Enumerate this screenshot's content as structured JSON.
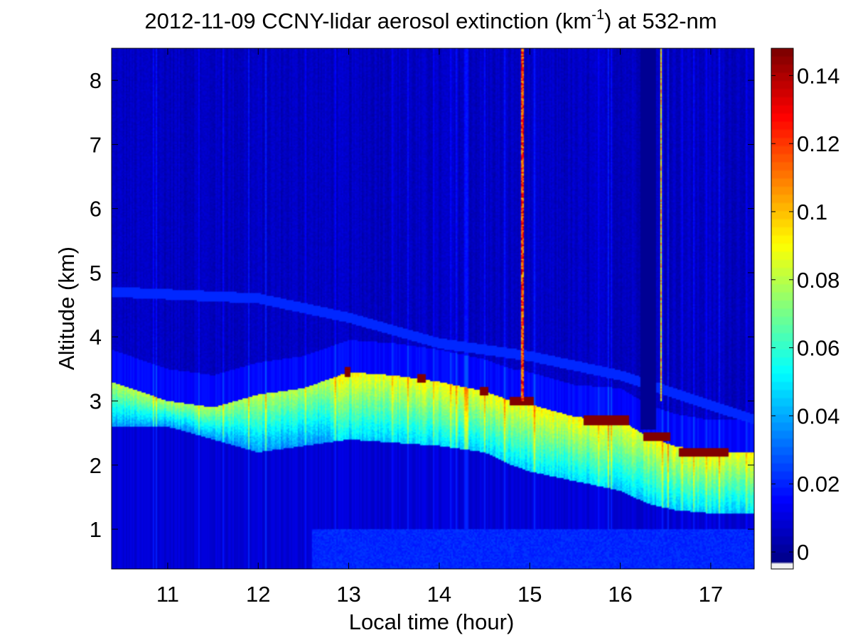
{
  "chart_data": {
    "type": "heatmap",
    "title_main": "2012-11-09 CCNY-lidar aerosol extinction (km",
    "title_sup": "-1",
    "title_tail": ") at 532-nm",
    "xlabel": "Local time (hour)",
    "ylabel": "Altitude (km)",
    "xlim": [
      10.38,
      17.48
    ],
    "ylim": [
      0.38,
      8.5
    ],
    "x_ticks": [
      11,
      12,
      13,
      14,
      15,
      16,
      17
    ],
    "x_tick_labels": [
      "11",
      "12",
      "13",
      "14",
      "15",
      "16",
      "17"
    ],
    "y_ticks": [
      1,
      2,
      3,
      4,
      5,
      6,
      7,
      8
    ],
    "y_tick_labels": [
      "1",
      "2",
      "3",
      "4",
      "5",
      "6",
      "7",
      "8"
    ],
    "colorbar": {
      "colormap": "jet",
      "clim": [
        -0.005,
        0.148
      ],
      "ticks": [
        0,
        0.02,
        0.04,
        0.06,
        0.08,
        0.1,
        0.12,
        0.14
      ],
      "tick_labels": [
        "0",
        "0.02",
        "0.04",
        "0.06",
        "0.08",
        "0.1",
        "0.12",
        "0.14"
      ],
      "below_range_color": "#f0f0f0"
    },
    "background_extinction": 0.005,
    "aerosol_layer": {
      "time": [
        10.38,
        11.0,
        11.5,
        12.0,
        12.5,
        13.0,
        13.5,
        14.0,
        14.5,
        14.8,
        15.0,
        15.5,
        16.0,
        16.3,
        16.6,
        17.0,
        17.48
      ],
      "top_km": [
        3.3,
        3.0,
        2.9,
        3.1,
        3.2,
        3.45,
        3.4,
        3.3,
        3.15,
        3.0,
        2.95,
        2.75,
        2.7,
        2.45,
        2.3,
        2.2,
        2.2
      ],
      "base_km": [
        2.6,
        2.6,
        2.4,
        2.2,
        2.3,
        2.4,
        2.35,
        2.3,
        2.2,
        2.0,
        1.9,
        1.75,
        1.6,
        1.4,
        1.3,
        1.25,
        1.25
      ]
    },
    "cloud_segments": [
      {
        "t0": 12.95,
        "t1": 13.02,
        "alt": 3.45
      },
      {
        "t0": 13.75,
        "t1": 13.85,
        "alt": 3.35
      },
      {
        "t0": 14.45,
        "t1": 14.55,
        "alt": 3.15
      },
      {
        "t0": 14.78,
        "t1": 15.05,
        "alt": 3.0
      },
      {
        "t0": 15.6,
        "t1": 16.1,
        "alt": 2.7
      },
      {
        "t0": 16.25,
        "t1": 16.55,
        "alt": 2.45
      },
      {
        "t0": 16.65,
        "t1": 17.2,
        "alt": 2.2
      }
    ],
    "vertical_streaks": [
      {
        "t": 14.92,
        "value": 0.14
      },
      {
        "t": 16.45,
        "value": 0.11
      }
    ],
    "data_gap": {
      "t0": 16.23,
      "t1": 16.4
    }
  }
}
